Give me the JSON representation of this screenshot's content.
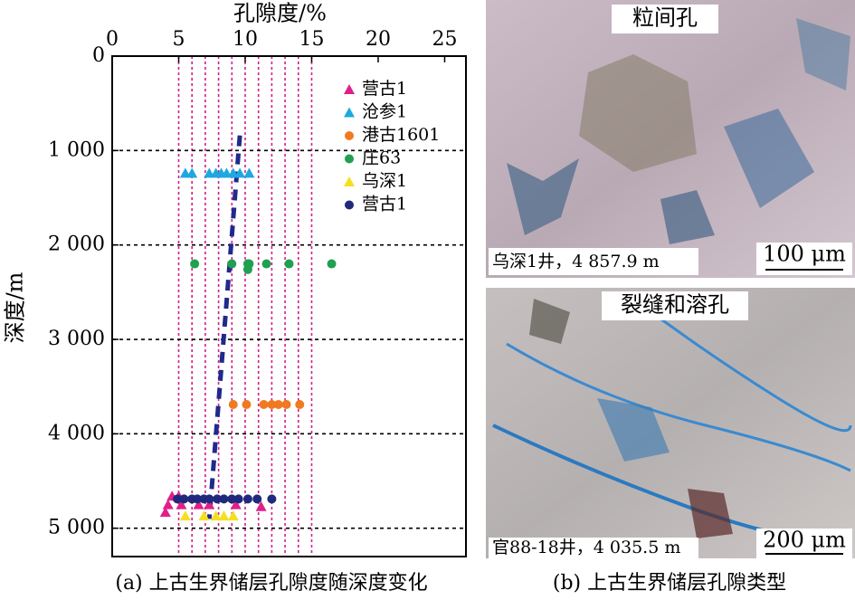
{
  "chart_data": {
    "type": "scatter",
    "xlabel": "孔隙度/%",
    "ylabel": "深度/m",
    "caption": "(a) 上古生界储层孔隙度随深度变化",
    "xlim": [
      0,
      26.6
    ],
    "xticks": [
      0,
      5,
      10,
      15,
      20,
      25
    ],
    "ylim": [
      0,
      5300
    ],
    "yticks": [
      0,
      {
        "value": 1000,
        "label": "1 000"
      },
      {
        "value": 2000,
        "label": "2 000"
      },
      {
        "value": 3000,
        "label": "3 000"
      },
      {
        "value": 4000,
        "label": "4 000"
      },
      {
        "value": 5000,
        "label": "5 000"
      }
    ],
    "y_inverted": true,
    "x_axis_position": "top",
    "grid": true,
    "grid_color": "#000000",
    "vgrid": [
      5,
      6,
      7,
      8,
      9,
      10,
      11,
      12,
      13,
      14,
      15
    ],
    "vgrid_color": "#d0208a",
    "legend": "upper-right",
    "trend": {
      "x": [
        9.6,
        7.3
      ],
      "y": [
        840,
        4900
      ],
      "color": "#1f2a8c"
    },
    "series": [
      {
        "name": "营古1",
        "marker": "triangle",
        "color": "#e0208a",
        "x": [
          4.5,
          5.0,
          4.0,
          4.2,
          5.2,
          6.5,
          7.3,
          9.3,
          11.2
        ],
        "y": [
          4660,
          4660,
          4830,
          4750,
          4750,
          4750,
          4750,
          4750,
          4770
        ]
      },
      {
        "name": "沧参1",
        "marker": "triangle",
        "color": "#1fa8e0",
        "x": [
          5.5,
          6.0,
          7.3,
          7.8,
          8.2,
          8.6,
          9.1,
          9.6,
          10.3
        ],
        "y": [
          1240,
          1240,
          1240,
          1240,
          1240,
          1240,
          1240,
          1240,
          1240
        ]
      },
      {
        "name": "港古1601",
        "marker": "circle",
        "color": "#f07a20",
        "x": [
          9.1,
          10.1,
          11.4,
          12.0,
          12.5,
          13.1,
          14.1
        ],
        "y": [
          3690,
          3690,
          3690,
          3690,
          3690,
          3690,
          3690
        ]
      },
      {
        "name": "庄63",
        "marker": "circle",
        "color": "#20a050",
        "x": [
          6.2,
          9.0,
          10.2,
          10.3,
          11.6,
          13.3,
          16.5,
          10.2
        ],
        "y": [
          2200,
          2200,
          2200,
          2200,
          2200,
          2200,
          2200,
          2260
        ]
      },
      {
        "name": "乌深1",
        "marker": "triangle",
        "color": "#f5e020",
        "x": [
          5.5,
          6.9,
          7.8,
          8.4,
          9.1
        ],
        "y": [
          4870,
          4870,
          4870,
          4870,
          4870
        ]
      },
      {
        "name": "营古1",
        "marker": "circle",
        "color": "#1f2a7c",
        "x": [
          4.9,
          5.4,
          6.0,
          6.4,
          6.9,
          7.3,
          7.9,
          8.4,
          9.0,
          9.5,
          10.2,
          10.9,
          12.0
        ],
        "y": [
          4690,
          4690,
          4690,
          4690,
          4690,
          4690,
          4690,
          4690,
          4690,
          4690,
          4690,
          4690,
          4690
        ]
      }
    ]
  },
  "photo_panel": {
    "caption": "(b) 上古生界储层孔隙类型",
    "photos": [
      {
        "title": "粒间孔",
        "location": "乌深1井，4 857.9 m",
        "scale": "100 μm"
      },
      {
        "title": "裂缝和溶孔",
        "location": "官88-18井，4 035.5 m",
        "scale": "200 μm"
      }
    ]
  }
}
